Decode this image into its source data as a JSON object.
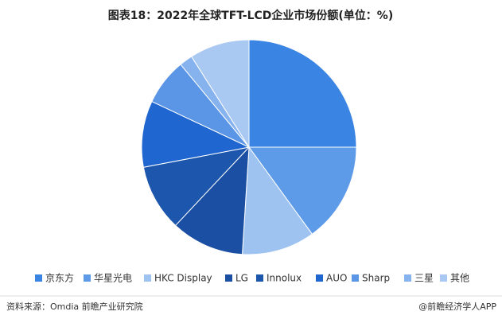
{
  "chart_data": {
    "type": "pie",
    "title": "图表18：2022年全球TFT-LCD企业市场份额(单位：%)",
    "categories": [
      "京东方",
      "华星光电",
      "HKC Display",
      "LG",
      "Innolux",
      "AUO",
      "Sharp",
      "三星",
      "其他"
    ],
    "values": [
      25,
      15,
      11,
      11,
      10,
      10,
      7,
      2,
      9
    ],
    "colors": [
      "#3a84e4",
      "#5d9ae8",
      "#9fc3f1",
      "#1b4fa3",
      "#1c56ad",
      "#1f66d0",
      "#5b95e6",
      "#86b3ee",
      "#a9c8f2"
    ],
    "source": "资料来源：Omdia 前瞻产业研究院",
    "credit": "@前瞻经济学人APP"
  }
}
